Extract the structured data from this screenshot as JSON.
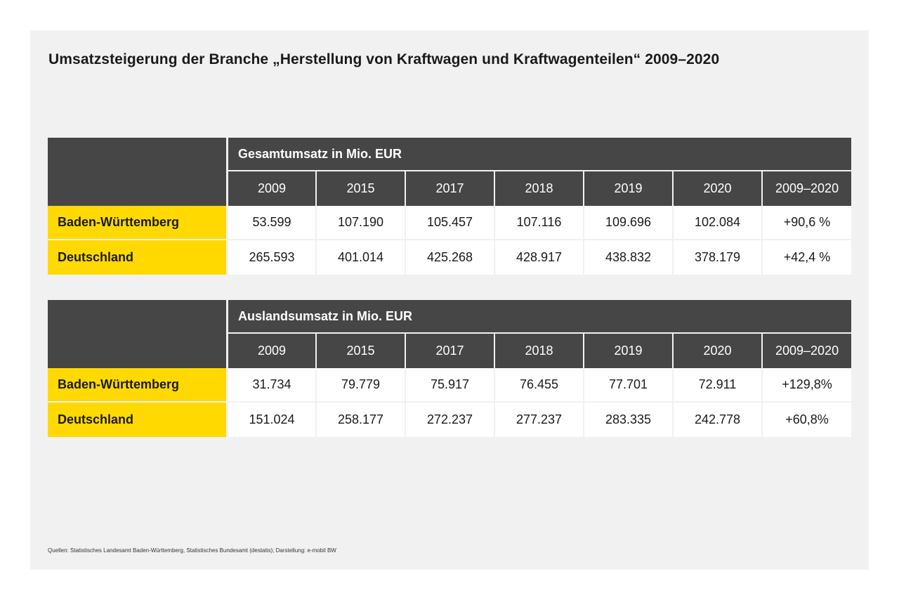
{
  "title": "Umsatzsteigerung der Branche „Herstellung von Kraftwagen und Kraftwagenteilen“ 2009–2020",
  "years": [
    "2009",
    "2015",
    "2017",
    "2018",
    "2019",
    "2020",
    "2009–2020"
  ],
  "tables": [
    {
      "heading": "Gesamtumsatz in Mio. EUR",
      "rows": [
        {
          "label": "Baden-Württemberg",
          "values": [
            "53.599",
            "107.190",
            "105.457",
            "107.116",
            "109.696",
            "102.084",
            "+90,6 %"
          ]
        },
        {
          "label": "Deutschland",
          "values": [
            "265.593",
            "401.014",
            "425.268",
            "428.917",
            "438.832",
            "378.179",
            "+42,4 %"
          ]
        }
      ]
    },
    {
      "heading": "Auslandsumsatz in Mio. EUR",
      "rows": [
        {
          "label": "Baden-Württemberg",
          "values": [
            "31.734",
            "79.779",
            "75.917",
            "76.455",
            "77.701",
            "72.911",
            "+129,8%"
          ]
        },
        {
          "label": "Deutschland",
          "values": [
            "151.024",
            "258.177",
            "272.237",
            "277.237",
            "283.335",
            "242.778",
            "+60,8%"
          ]
        }
      ]
    }
  ],
  "source": "Quellen: Statistisches Landesamt Baden-Württemberg, Statistisches Bundesamt (destatis); Darstellung: e-mobil BW",
  "colors": {
    "header_bg": "#464646",
    "label_bg": "#ffd900",
    "panel_bg": "#f1f1f1"
  }
}
